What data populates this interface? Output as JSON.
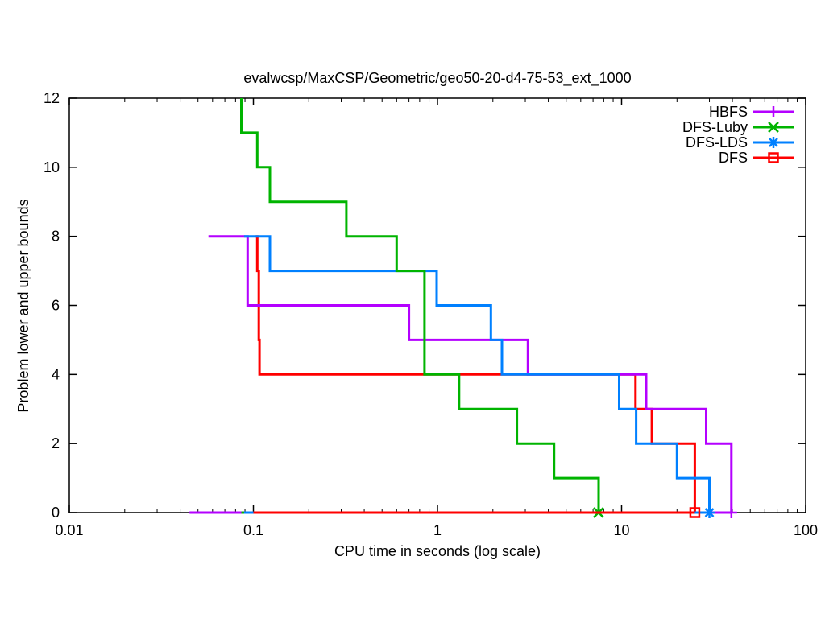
{
  "chart_data": {
    "type": "line",
    "title": "evalwcsp/MaxCSP/Geometric/geo50-20-d4-75-53_ext_1000",
    "xlabel": "CPU time in seconds (log scale)",
    "ylabel": "Problem lower and upper bounds",
    "x_scale": "log",
    "xlim": [
      0.01,
      100
    ],
    "ylim": [
      0,
      12
    ],
    "x_ticks": [
      0.01,
      0.1,
      1,
      10,
      100
    ],
    "x_tick_labels": [
      "0.01",
      "0.1",
      "1",
      "10",
      "100"
    ],
    "y_ticks": [
      0,
      2,
      4,
      6,
      8,
      10,
      12
    ],
    "y_tick_labels": [
      "0",
      "2",
      "4",
      "6",
      "8",
      "10",
      "12"
    ],
    "grid": false,
    "legend_position": "top-right-inside",
    "series": [
      {
        "name": "HBFS",
        "color": "#b400ff",
        "marker": "plus",
        "upper_bound_steps": [
          [
            0.057,
            8
          ],
          [
            0.093,
            6
          ],
          [
            0.7,
            5
          ],
          [
            3.1,
            4
          ],
          [
            13.6,
            3
          ],
          [
            28.8,
            2
          ],
          [
            39.5,
            0
          ]
        ],
        "lower_bound_line": [
          0.045,
          39.5
        ],
        "end_point": [
          39.5,
          0
        ]
      },
      {
        "name": "DFS-Luby",
        "color": "#00b400",
        "marker": "x",
        "upper_bound_steps": [
          [
            0.086,
            12
          ],
          [
            0.086,
            11
          ],
          [
            0.105,
            10
          ],
          [
            0.123,
            9
          ],
          [
            0.32,
            8
          ],
          [
            0.6,
            7
          ],
          [
            0.85,
            4
          ],
          [
            1.31,
            3
          ],
          [
            2.7,
            2
          ],
          [
            4.3,
            1
          ],
          [
            7.5,
            0
          ]
        ],
        "lower_bound_line": [
          0.086,
          7.5
        ],
        "end_point": [
          7.5,
          0
        ]
      },
      {
        "name": "DFS-LDS",
        "color": "#0080ff",
        "marker": "asterisk",
        "upper_bound_steps": [
          [
            0.089,
            8
          ],
          [
            0.123,
            7
          ],
          [
            0.99,
            6
          ],
          [
            1.95,
            5
          ],
          [
            2.24,
            4
          ],
          [
            9.7,
            3
          ],
          [
            12.0,
            2
          ],
          [
            20,
            1
          ],
          [
            30,
            0
          ]
        ],
        "lower_bound_line": [
          0.089,
          30
        ],
        "end_point": [
          30,
          0
        ]
      },
      {
        "name": "DFS",
        "color": "#ff0000",
        "marker": "square",
        "upper_bound_steps": [
          [
            0.103,
            8
          ],
          [
            0.105,
            7
          ],
          [
            0.107,
            5
          ],
          [
            0.108,
            4
          ],
          [
            11.9,
            3
          ],
          [
            14.6,
            2
          ],
          [
            25,
            0
          ]
        ],
        "lower_bound_line": [
          0.1,
          25
        ],
        "end_point": [
          25,
          0
        ]
      }
    ]
  }
}
